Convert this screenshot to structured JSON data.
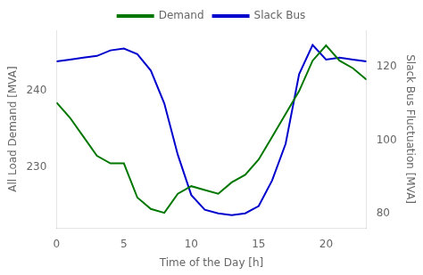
{
  "chart_data": {
    "type": "line",
    "xlabel": "Time of the Day [h]",
    "ylabel": "All Load Demand [MVA]",
    "y2label": "Slack Bus Fluctuation [MVA]",
    "x": [
      0,
      1,
      2,
      3,
      4,
      5,
      6,
      7,
      8,
      9,
      10,
      11,
      12,
      13,
      14,
      15,
      16,
      17,
      18,
      19,
      20,
      21,
      22,
      23
    ],
    "series": [
      {
        "name": "Demand",
        "color": "#007700",
        "values": [
          238.5,
          236.5,
          234,
          231.5,
          230.5,
          230.5,
          226,
          224.5,
          224,
          226.5,
          227.5,
          227,
          226.5,
          228,
          229,
          231,
          234,
          237,
          240,
          244,
          246,
          244,
          243,
          241.5
        ]
      },
      {
        "name": "Slack Bus",
        "color": "#0000cc",
        "axis": "y2",
        "values": [
          121.5,
          122,
          122.5,
          123,
          124.5,
          125,
          123.5,
          119,
          110,
          96,
          85,
          81,
          80,
          79.5,
          80,
          82,
          89,
          99,
          118,
          126,
          122,
          122.5,
          122,
          121.5
        ]
      }
    ],
    "xlim": [
      0,
      23
    ],
    "xticks": [
      0,
      5,
      10,
      15,
      20
    ],
    "ylim": [
      222,
      248
    ],
    "yticks": [
      230,
      240
    ],
    "y2lim": [
      76,
      130
    ],
    "y2ticks": [
      80,
      100,
      120
    ],
    "grid": false,
    "legend": "top"
  }
}
